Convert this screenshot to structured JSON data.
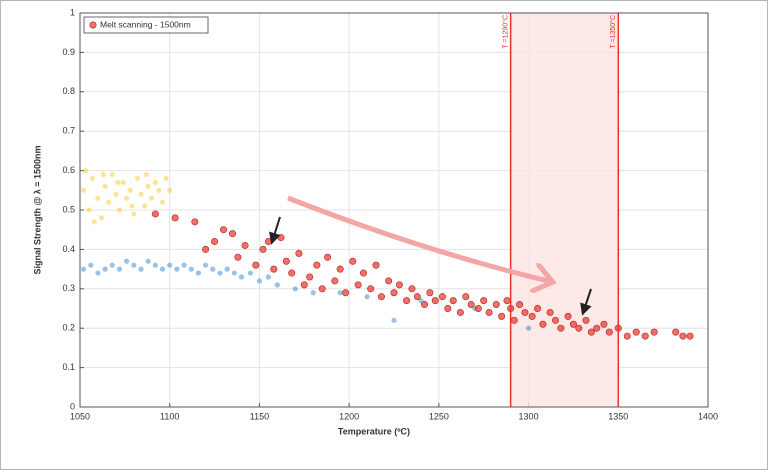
{
  "chart_data": {
    "type": "scatter",
    "xlabel": "Temperature (ºC)",
    "ylabel": "Signal Strength @ λ = 1500nm",
    "xlim": [
      1050,
      1400
    ],
    "xticks": [
      1050,
      1100,
      1150,
      1200,
      1250,
      1300,
      1350,
      1400
    ],
    "ylim": [
      0,
      1
    ],
    "yticks": [
      0,
      0.1,
      0.2,
      0.3,
      0.4,
      0.5,
      0.6,
      0.7,
      0.8,
      0.9,
      1
    ],
    "grid": true,
    "legend": "upper left",
    "vlines": [
      {
        "x": 1290,
        "label": "T =1290°C",
        "color": "#e8322a"
      },
      {
        "x": 1350,
        "label": "T =1350°C",
        "color": "#e8322a"
      }
    ],
    "series": [
      {
        "color": "#f5c518",
        "x": [
          1052,
          1055,
          1057,
          1060,
          1062,
          1064,
          1066,
          1068,
          1070,
          1072,
          1074,
          1076,
          1078,
          1080,
          1082,
          1084,
          1086,
          1088,
          1090,
          1092,
          1094,
          1096,
          1098,
          1053,
          1058,
          1063,
          1071,
          1079,
          1087,
          1100
        ],
        "values": [
          0.55,
          0.5,
          0.58,
          0.53,
          0.48,
          0.56,
          0.52,
          0.59,
          0.54,
          0.5,
          0.57,
          0.53,
          0.55,
          0.49,
          0.58,
          0.54,
          0.51,
          0.56,
          0.53,
          0.57,
          0.55,
          0.52,
          0.58,
          0.6,
          0.47,
          0.59,
          0.57,
          0.51,
          0.59,
          0.55
        ]
      },
      {
        "color": "#1f77c4",
        "x": [
          1052,
          1056,
          1060,
          1064,
          1068,
          1072,
          1076,
          1080,
          1084,
          1088,
          1092,
          1096,
          1100,
          1104,
          1108,
          1112,
          1116,
          1120,
          1124,
          1128,
          1132,
          1136,
          1140,
          1145,
          1150,
          1155,
          1160,
          1170,
          1180,
          1195,
          1210,
          1225,
          1240,
          1270,
          1300
        ],
        "values": [
          0.35,
          0.36,
          0.34,
          0.35,
          0.36,
          0.35,
          0.37,
          0.36,
          0.35,
          0.37,
          0.36,
          0.35,
          0.36,
          0.35,
          0.36,
          0.35,
          0.34,
          0.36,
          0.35,
          0.34,
          0.35,
          0.34,
          0.33,
          0.34,
          0.32,
          0.33,
          0.31,
          0.3,
          0.29,
          0.29,
          0.28,
          0.22,
          0.27,
          0.25,
          0.2
        ]
      },
      {
        "name": "Melt scanning - 1500nm",
        "color": "#e8322a",
        "x": [
          1092,
          1103,
          1114,
          1120,
          1125,
          1130,
          1135,
          1138,
          1142,
          1148,
          1152,
          1155,
          1158,
          1162,
          1165,
          1168,
          1172,
          1175,
          1178,
          1182,
          1185,
          1188,
          1192,
          1195,
          1198,
          1202,
          1205,
          1208,
          1212,
          1215,
          1218,
          1222,
          1225,
          1228,
          1232,
          1235,
          1238,
          1242,
          1245,
          1248,
          1252,
          1255,
          1258,
          1262,
          1265,
          1268,
          1272,
          1275,
          1278,
          1282,
          1285,
          1288,
          1290,
          1292,
          1295,
          1298,
          1302,
          1305,
          1308,
          1312,
          1315,
          1318,
          1322,
          1325,
          1328,
          1332,
          1335,
          1338,
          1342,
          1345,
          1350,
          1355,
          1360,
          1365,
          1370,
          1382,
          1386,
          1390
        ],
        "values": [
          0.49,
          0.48,
          0.47,
          0.4,
          0.42,
          0.45,
          0.44,
          0.38,
          0.41,
          0.36,
          0.4,
          0.42,
          0.35,
          0.43,
          0.37,
          0.34,
          0.39,
          0.31,
          0.33,
          0.36,
          0.3,
          0.38,
          0.32,
          0.35,
          0.29,
          0.37,
          0.31,
          0.34,
          0.3,
          0.36,
          0.28,
          0.32,
          0.29,
          0.31,
          0.27,
          0.3,
          0.28,
          0.26,
          0.29,
          0.27,
          0.28,
          0.25,
          0.27,
          0.24,
          0.28,
          0.26,
          0.25,
          0.27,
          0.24,
          0.26,
          0.23,
          0.27,
          0.25,
          0.22,
          0.26,
          0.24,
          0.23,
          0.25,
          0.21,
          0.24,
          0.22,
          0.2,
          0.23,
          0.21,
          0.2,
          0.22,
          0.19,
          0.2,
          0.21,
          0.19,
          0.2,
          0.18,
          0.19,
          0.18,
          0.19,
          0.19,
          0.18,
          0.18
        ]
      }
    ]
  }
}
